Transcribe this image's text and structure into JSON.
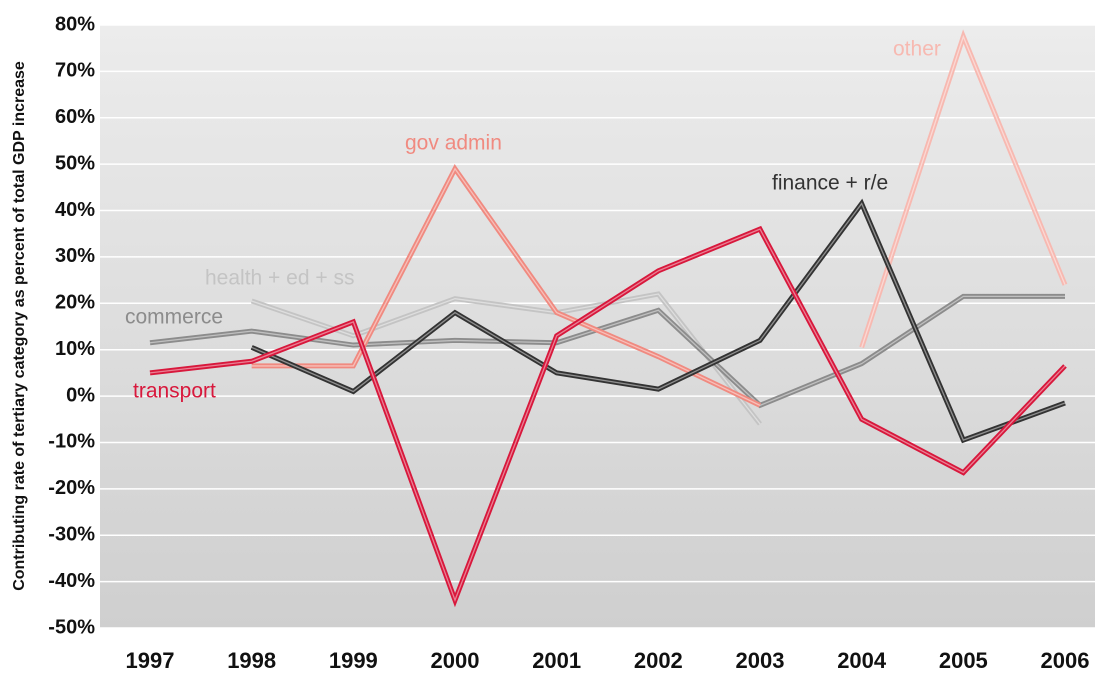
{
  "chart_data": {
    "type": "line",
    "y_label": "Contributing rate of tertiary category as percent of total GDP increase",
    "categories": [
      "1997",
      "1998",
      "1999",
      "2000",
      "2001",
      "2002",
      "2003",
      "2004",
      "2005",
      "2006"
    ],
    "ylim": [
      -50,
      80
    ],
    "yticks": [
      {
        "value": 80,
        "label": "80%"
      },
      {
        "value": 70,
        "label": "70%"
      },
      {
        "value": 60,
        "label": "60%"
      },
      {
        "value": 50,
        "label": "50%"
      },
      {
        "value": 40,
        "label": "40%"
      },
      {
        "value": 30,
        "label": "30%"
      },
      {
        "value": 20,
        "label": "20%"
      },
      {
        "value": 10,
        "label": "10%"
      },
      {
        "value": 0,
        "label": "0%"
      },
      {
        "value": -10,
        "label": "-10%"
      },
      {
        "value": -20,
        "label": "-20%"
      },
      {
        "value": -30,
        "label": "-30%"
      },
      {
        "value": -40,
        "label": "-40%"
      },
      {
        "value": -50,
        "label": "-50%"
      }
    ],
    "grid": true,
    "series": [
      {
        "name": "health + ed + ss",
        "color": "#c4c4c4",
        "values": [
          null,
          20.5,
          13,
          21,
          18,
          22,
          -6,
          null,
          null,
          null
        ]
      },
      {
        "name": "commerce",
        "color": "#8c8c8c",
        "values": [
          11.5,
          14,
          11,
          12,
          11.5,
          18.5,
          -2,
          7,
          21.5,
          21.5
        ]
      },
      {
        "name": "gov admin",
        "color": "#f08a80",
        "values": [
          null,
          6.5,
          6.5,
          49,
          18,
          8.5,
          -2,
          null,
          null,
          null
        ]
      },
      {
        "name": "other",
        "color": "#f7b9b1",
        "values": [
          null,
          null,
          null,
          null,
          null,
          null,
          null,
          10.5,
          77.5,
          24
        ]
      },
      {
        "name": "finance + r/e",
        "color": "#333333",
        "values": [
          null,
          10.5,
          1,
          18,
          5,
          1.5,
          12,
          41.5,
          -9.5,
          -1.5
        ]
      },
      {
        "name": "transport",
        "color": "#d8183c",
        "values": [
          5,
          7.5,
          16,
          -44,
          13,
          27,
          36,
          -5,
          -16.5,
          6.5
        ]
      }
    ]
  }
}
